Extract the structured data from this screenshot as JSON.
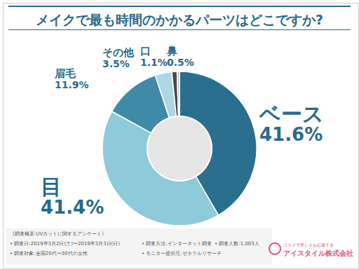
{
  "chart_data": {
    "type": "pie",
    "title": "メイクで最も時間のかかるパーツはどこですか?",
    "categories": [
      "ベース",
      "目",
      "眉毛",
      "その他",
      "口",
      "鼻"
    ],
    "values": [
      41.6,
      41.4,
      11.9,
      3.5,
      1.1,
      0.5
    ],
    "value_labels": [
      "41.6%",
      "41.4%",
      "11.9%",
      "3.5%",
      "1.1%",
      "0.5%"
    ],
    "colors": [
      "#2b6f8f",
      "#8fcadb",
      "#3f8aa6",
      "#aed6e4",
      "#4a4a4a",
      "#bfbfbf"
    ],
    "data_labels": true,
    "annotations": [
      "《調査概要:UVカットに関するアンケート》",
      "• 調査日:2019年3月2日(土)〜2019年3月3日(日)",
      "• 調査方法:インターネット調査",
      "• 調査人数:1,003人",
      "• 調査対象:全国20代〜30代の女性",
      "• モニター提供元:ゼネラルリサーチ",
      "コスメで美しさを応援する",
      "アイスタイル株式会社"
    ]
  }
}
